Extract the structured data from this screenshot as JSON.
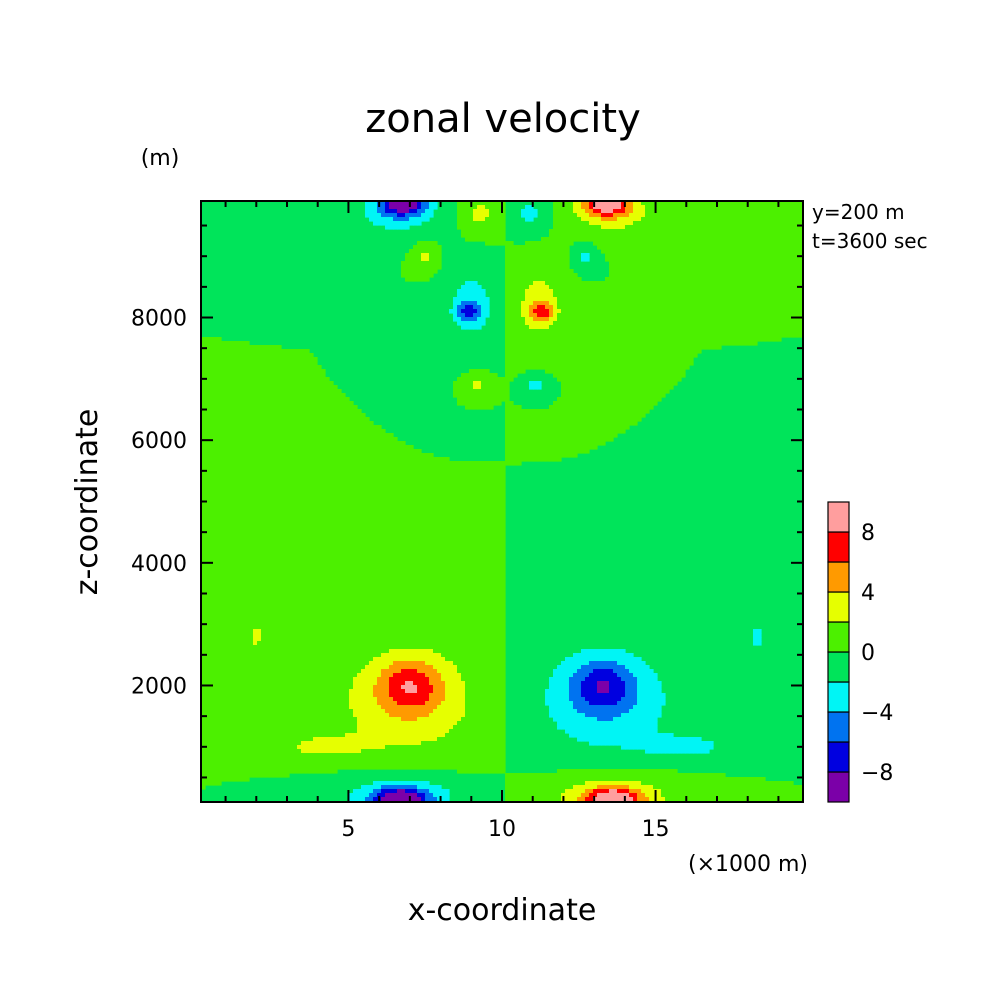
{
  "chart_data": {
    "type": "heatmap",
    "title": "zonal velocity",
    "xlabel": "x-coordinate",
    "ylabel": "z-coordinate",
    "x_units": "(×1000 m)",
    "y_units": "(m)",
    "annotations": [
      "y=200 m",
      "t=3600 sec"
    ],
    "xlim": [
      0.2,
      19.8
    ],
    "ylim": [
      100,
      9900
    ],
    "x_ticks": [
      5,
      10,
      15
    ],
    "y_ticks": [
      2000,
      4000,
      6000,
      8000
    ],
    "x_tick_labels": [
      "5",
      "10",
      "15"
    ],
    "y_tick_labels": [
      "2000",
      "4000",
      "6000",
      "8000"
    ],
    "colorbar": {
      "levels": [
        -10,
        -8,
        -6,
        -4,
        -2,
        0,
        2,
        4,
        6,
        8,
        10
      ],
      "tick_values": [
        -8,
        -4,
        0,
        4,
        8
      ],
      "tick_labels": [
        "−8",
        "−4",
        "0",
        "4",
        "8"
      ],
      "colors": [
        "#7b00a8",
        "#0000e0",
        "#0073f0",
        "#00f5f5",
        "#00e45a",
        "#4cf000",
        "#e6ff00",
        "#ff9a00",
        "#ff0000",
        "#ff9e9e"
      ]
    },
    "background_level_color": "#00e45a",
    "features": [
      {
        "x": 7.0,
        "z": 2000,
        "value": 5.0,
        "sx": 0.7,
        "sz": 300
      },
      {
        "x": 7.0,
        "z": 1750,
        "value": 3.5,
        "sx": 1.8,
        "sz": 650
      },
      {
        "x": 13.3,
        "z": 2000,
        "value": -5.0,
        "sx": 0.7,
        "sz": 300
      },
      {
        "x": 13.3,
        "z": 1750,
        "value": -3.5,
        "sx": 1.8,
        "sz": 650
      },
      {
        "x": 6.7,
        "z": 150,
        "value": -9.0,
        "sx": 0.6,
        "sz": 120
      },
      {
        "x": 6.7,
        "z": 200,
        "value": -3.5,
        "sx": 1.5,
        "sz": 260
      },
      {
        "x": 13.6,
        "z": 150,
        "value": 9.0,
        "sx": 0.6,
        "sz": 120
      },
      {
        "x": 13.6,
        "z": 200,
        "value": 3.5,
        "sx": 1.5,
        "sz": 260
      },
      {
        "x": 6.8,
        "z": 9850,
        "value": -8.5,
        "sx": 0.5,
        "sz": 130
      },
      {
        "x": 6.5,
        "z": 9700,
        "value": -3.0,
        "sx": 1.0,
        "sz": 260
      },
      {
        "x": 13.4,
        "z": 9850,
        "value": 8.5,
        "sx": 0.5,
        "sz": 130
      },
      {
        "x": 13.6,
        "z": 9700,
        "value": 3.0,
        "sx": 1.0,
        "sz": 260
      },
      {
        "x": 8.9,
        "z": 8100,
        "value": -5.0,
        "sx": 0.25,
        "sz": 110
      },
      {
        "x": 9.0,
        "z": 8200,
        "value": -3.0,
        "sx": 0.6,
        "sz": 420
      },
      {
        "x": 11.3,
        "z": 8100,
        "value": 5.0,
        "sx": 0.25,
        "sz": 110
      },
      {
        "x": 11.2,
        "z": 8200,
        "value": 3.0,
        "sx": 0.6,
        "sz": 420
      },
      {
        "x": 9.3,
        "z": 9700,
        "value": 2.6,
        "sx": 0.4,
        "sz": 200
      },
      {
        "x": 10.9,
        "z": 9700,
        "value": -2.6,
        "sx": 0.4,
        "sz": 200
      },
      {
        "x": 7.5,
        "z": 9000,
        "value": 2.4,
        "sx": 0.25,
        "sz": 150
      },
      {
        "x": 12.7,
        "z": 9000,
        "value": -2.4,
        "sx": 0.25,
        "sz": 150
      },
      {
        "x": 9.2,
        "z": 6900,
        "value": 2.6,
        "sx": 0.25,
        "sz": 100
      },
      {
        "x": 11.1,
        "z": 6900,
        "value": -2.6,
        "sx": 0.25,
        "sz": 100
      },
      {
        "x": 2.0,
        "z": 2800,
        "value": 2.4,
        "sx": 0.25,
        "sz": 200
      },
      {
        "x": 18.3,
        "z": 2800,
        "value": -2.4,
        "sx": 0.25,
        "sz": 200
      },
      {
        "x": 4.0,
        "z": 1000,
        "value": 2.1,
        "sx": 1.2,
        "sz": 160
      },
      {
        "x": 16.2,
        "z": 1000,
        "value": -2.1,
        "sx": 1.2,
        "sz": 160
      }
    ]
  }
}
